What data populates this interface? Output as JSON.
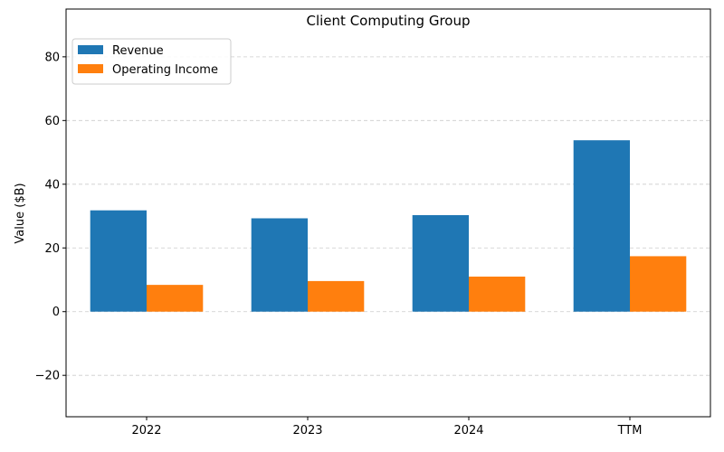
{
  "chart_data": {
    "type": "bar",
    "title": "Client Computing Group",
    "xlabel": "",
    "ylabel": "Value ($B)",
    "categories": [
      "2022",
      "2023",
      "2024",
      "TTM"
    ],
    "series": [
      {
        "name": "Revenue",
        "values": [
          31.8,
          29.3,
          30.3,
          53.8
        ],
        "color": "#1f77b4"
      },
      {
        "name": "Operating Income",
        "values": [
          8.4,
          9.6,
          11.0,
          17.4
        ],
        "color": "#ff7f0e"
      }
    ],
    "ylim": [
      -33,
      95
    ],
    "yticks": [
      -20,
      0,
      20,
      40,
      60,
      80
    ],
    "grid": true,
    "legend": "top-left"
  }
}
